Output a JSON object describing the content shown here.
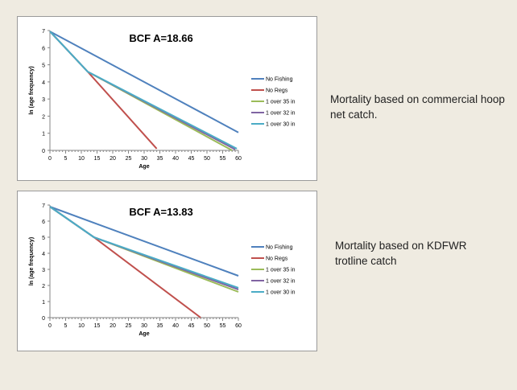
{
  "captions": [
    "Mortality based on commercial hoop net catch.",
    "Mortality based on KDFWR trotline catch"
  ],
  "chart_data": [
    {
      "type": "line",
      "title": "BCF A=18.66",
      "xlabel": "Age",
      "ylabel": "ln (age frequency)",
      "xlim": [
        0,
        60
      ],
      "ylim": [
        0,
        7
      ],
      "xticks": [
        0,
        5,
        10,
        15,
        20,
        25,
        30,
        35,
        40,
        45,
        50,
        55,
        60
      ],
      "yticks": [
        0,
        1,
        2,
        3,
        4,
        5,
        6,
        7
      ],
      "grid": false,
      "legend_position": "right",
      "series": [
        {
          "name": "No Fishing",
          "color": "#4f81bd",
          "x": [
            0,
            60
          ],
          "y": [
            6.95,
            1.05
          ]
        },
        {
          "name": "No Regs",
          "color": "#c0504d",
          "x": [
            0,
            12,
            34
          ],
          "y": [
            6.95,
            4.6,
            0.1
          ]
        },
        {
          "name": "1 over 35 in",
          "color": "#9bbb59",
          "x": [
            0,
            12,
            58
          ],
          "y": [
            6.95,
            4.6,
            0.0
          ]
        },
        {
          "name": "1 over 32 in",
          "color": "#8064a2",
          "x": [
            0,
            12,
            59
          ],
          "y": [
            6.95,
            4.6,
            0.05
          ]
        },
        {
          "name": "1 over 30 in",
          "color": "#4bacc6",
          "x": [
            0,
            12,
            59.5
          ],
          "y": [
            6.95,
            4.6,
            0.1
          ]
        }
      ]
    },
    {
      "type": "line",
      "title": "BCF A=13.83",
      "xlabel": "Age",
      "ylabel": "ln (age frequency)",
      "xlim": [
        0,
        60
      ],
      "ylim": [
        0,
        7
      ],
      "xticks": [
        0,
        5,
        10,
        15,
        20,
        25,
        30,
        35,
        40,
        45,
        50,
        55,
        60
      ],
      "yticks": [
        0,
        1,
        2,
        3,
        4,
        5,
        6,
        7
      ],
      "grid": false,
      "legend_position": "right",
      "series": [
        {
          "name": "No Fishing",
          "color": "#4f81bd",
          "x": [
            0,
            60
          ],
          "y": [
            6.9,
            2.6
          ]
        },
        {
          "name": "No Regs",
          "color": "#c0504d",
          "x": [
            0,
            14,
            48
          ],
          "y": [
            6.9,
            5.0,
            0.0
          ]
        },
        {
          "name": "1 over 35 in",
          "color": "#9bbb59",
          "x": [
            0,
            14,
            60
          ],
          "y": [
            6.9,
            5.0,
            1.6
          ]
        },
        {
          "name": "1 over 32 in",
          "color": "#8064a2",
          "x": [
            0,
            14,
            60
          ],
          "y": [
            6.9,
            5.0,
            1.75
          ]
        },
        {
          "name": "1 over 30 in",
          "color": "#4bacc6",
          "x": [
            0,
            14,
            60
          ],
          "y": [
            6.9,
            5.0,
            1.85
          ]
        }
      ]
    }
  ]
}
